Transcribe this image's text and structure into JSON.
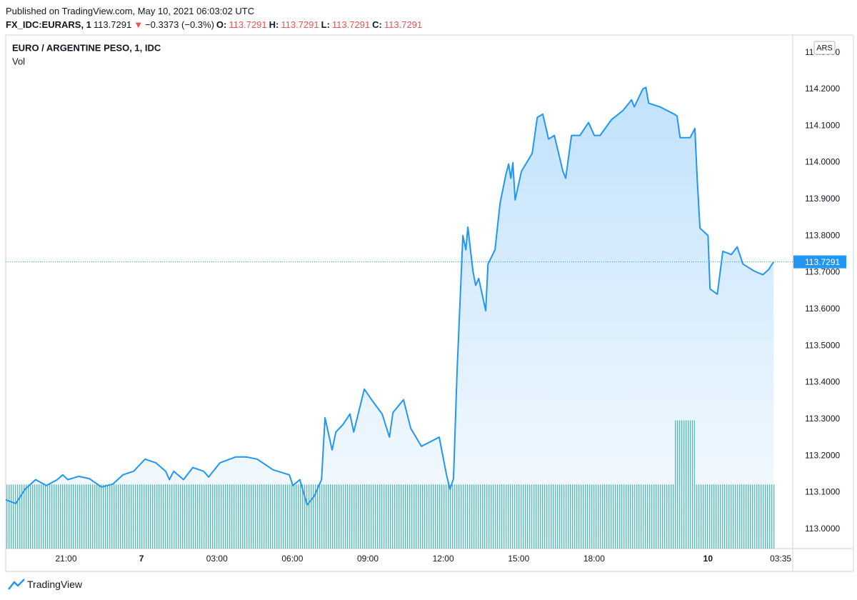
{
  "header": {
    "published": "Published on TradingView.com, May 10, 2021 06:03:02 UTC",
    "symbol": "FX_IDC:EURARS, 1",
    "last": "113.7291",
    "arrow": "▼",
    "change": "−0.3373 (−0.3%)",
    "ohlc": [
      {
        "label": "O:",
        "value": "113.7291"
      },
      {
        "label": "H:",
        "value": "113.7291"
      },
      {
        "label": "L:",
        "value": "113.7291"
      },
      {
        "label": "C:",
        "value": "113.7291"
      }
    ]
  },
  "footer": {
    "brand": "TradingView"
  },
  "chart_data": {
    "type": "line",
    "title": "EURO / ARGENTINE PESO, 1, IDC",
    "currency": "ARS",
    "color": "#2196f3",
    "grid": true,
    "last_price": 113.7291,
    "x": [
      0.0,
      0.4,
      0.77,
      1.19,
      1.62,
      2.05,
      2.27,
      2.47,
      2.9,
      3.32,
      3.81,
      4.26,
      4.66,
      5.09,
      5.54,
      5.97,
      6.36,
      6.51,
      6.68,
      7.07,
      7.44,
      7.87,
      8.07,
      8.52,
      9.15,
      9.57,
      10.0,
      10.63,
      11.28,
      11.42,
      11.7,
      11.99,
      12.27,
      12.56,
      12.7,
      12.98,
      13.13,
      13.41,
      13.69,
      13.84,
      14.26,
      14.55,
      14.97,
      15.26,
      15.4,
      15.82,
      16.11,
      16.53,
      16.82,
      17.24,
      17.53,
      17.67,
      17.81,
      17.95,
      18.18,
      18.3,
      18.38,
      18.58,
      18.69,
      18.81,
      19.09,
      19.18,
      19.46,
      19.66,
      19.89,
      20.0,
      20.09,
      20.17,
      20.26,
      20.51,
      20.94,
      21.14,
      21.36,
      21.59,
      21.82,
      22.16,
      22.27,
      22.5,
      22.84,
      23.18,
      23.41,
      23.64,
      24.09,
      24.55,
      24.89,
      25.0,
      25.34,
      25.46,
      25.57,
      26.02,
      26.59,
      26.7,
      26.82,
      27.22,
      27.41,
      27.5,
      27.61,
      27.93,
      28.01,
      28.3,
      28.52,
      28.86,
      29.09,
      29.32,
      29.77,
      30.11,
      30.34,
      30.54
    ],
    "values": [
      113.08,
      113.07,
      113.109,
      113.135,
      113.119,
      113.135,
      113.148,
      113.135,
      113.144,
      113.138,
      113.115,
      113.123,
      113.148,
      113.158,
      113.191,
      113.181,
      113.158,
      113.135,
      113.158,
      113.135,
      113.168,
      113.158,
      113.142,
      113.181,
      113.197,
      113.197,
      113.191,
      113.162,
      113.148,
      113.119,
      113.135,
      113.066,
      113.09,
      113.135,
      113.304,
      113.216,
      113.265,
      113.285,
      113.314,
      113.265,
      113.382,
      113.353,
      113.314,
      113.251,
      113.318,
      113.353,
      113.275,
      113.226,
      113.236,
      113.251,
      113.148,
      113.109,
      113.138,
      113.431,
      113.801,
      113.762,
      113.824,
      113.704,
      113.665,
      113.684,
      113.596,
      113.723,
      113.762,
      113.889,
      113.967,
      113.996,
      113.957,
      114.0,
      113.898,
      113.976,
      114.025,
      114.123,
      114.132,
      114.064,
      114.074,
      113.976,
      113.957,
      114.074,
      114.074,
      114.109,
      114.074,
      114.074,
      114.117,
      114.142,
      114.171,
      114.152,
      114.201,
      114.205,
      114.162,
      114.152,
      114.132,
      114.127,
      114.068,
      114.068,
      114.093,
      113.957,
      113.821,
      113.801,
      113.655,
      113.641,
      113.758,
      113.749,
      113.77,
      113.723,
      113.704,
      113.694,
      113.708,
      113.7291
    ],
    "volume": {
      "label": "Vol",
      "color": "#26a69a",
      "values": [
        1,
        1,
        1,
        1,
        1,
        1,
        1,
        1,
        1,
        1,
        1,
        1,
        1,
        1,
        1,
        1,
        1,
        1,
        1,
        1,
        1,
        1,
        1,
        1,
        1,
        1,
        1,
        1,
        1,
        1,
        1,
        1,
        1,
        1,
        1,
        1,
        1,
        1,
        1,
        1,
        1,
        1,
        1,
        1,
        1,
        1,
        1,
        1,
        1,
        1,
        1,
        1,
        1,
        1,
        1,
        1,
        1,
        1,
        1,
        1,
        1,
        1,
        1,
        1,
        1,
        1,
        1,
        1,
        1,
        1,
        1,
        1,
        1,
        1,
        1,
        1,
        1,
        1,
        1,
        1,
        1,
        1,
        1,
        1,
        1,
        1,
        1,
        1,
        1,
        1,
        2,
        2,
        2,
        2,
        1,
        1,
        1,
        1,
        1,
        1,
        1,
        1,
        1,
        1,
        1,
        1,
        1,
        1
      ]
    },
    "xlim": [
      0,
      31.3
    ],
    "xticks": [
      {
        "value": 2.4,
        "label": "21:00"
      },
      {
        "value": 5.4,
        "label": "7"
      },
      {
        "value": 8.4,
        "label": "03:00"
      },
      {
        "value": 11.4,
        "label": "06:00"
      },
      {
        "value": 14.4,
        "label": "09:00"
      },
      {
        "value": 17.4,
        "label": "12:00"
      },
      {
        "value": 20.4,
        "label": "15:00"
      },
      {
        "value": 23.4,
        "label": "18:00"
      },
      {
        "value": 27.93,
        "label": "10"
      },
      {
        "value": 30.82,
        "label": "03:35"
      }
    ],
    "ylim": [
      112.947,
      114.346
    ],
    "yticks": [
      {
        "value": 113.0,
        "label": "113.0000"
      },
      {
        "value": 113.1,
        "label": "113.1000"
      },
      {
        "value": 113.2,
        "label": "113.2000"
      },
      {
        "value": 113.3,
        "label": "113.3000"
      },
      {
        "value": 113.4,
        "label": "113.4000"
      },
      {
        "value": 113.5,
        "label": "113.5000"
      },
      {
        "value": 113.6,
        "label": "113.6000"
      },
      {
        "value": 113.7,
        "label": "113.7000"
      },
      {
        "value": 113.8,
        "label": "113.8000"
      },
      {
        "value": 113.9,
        "label": "113.9000"
      },
      {
        "value": 114.0,
        "label": "114.0000"
      },
      {
        "value": 114.1,
        "label": "114.1000"
      },
      {
        "value": 114.2,
        "label": "114.2000"
      },
      {
        "value": 114.3,
        "label": "114.3000"
      }
    ]
  }
}
